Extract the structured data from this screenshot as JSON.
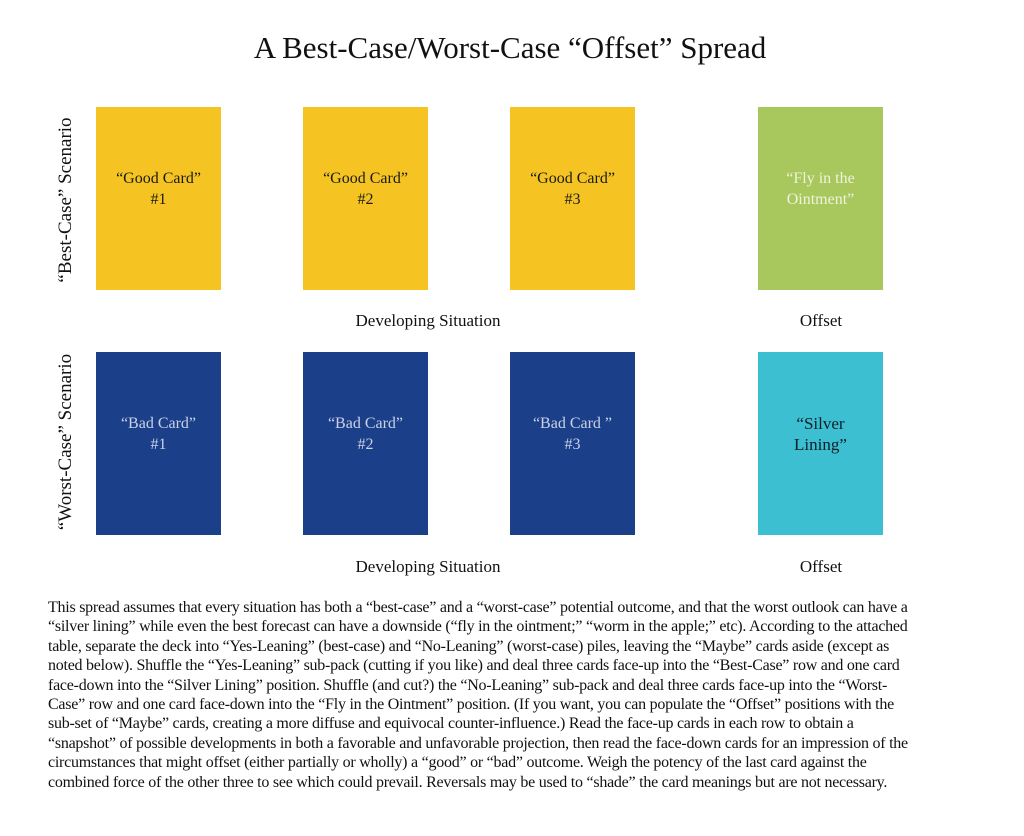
{
  "title": "A Best-Case/Worst-Case “Offset” Spread",
  "rows": [
    {
      "label": "“Best-Case” Scenario",
      "cards": [
        {
          "line1": "“Good Card”",
          "line2": "#1",
          "color": "#f6c422"
        },
        {
          "line1": "“Good Card”",
          "line2": "#2",
          "color": "#f6c422"
        },
        {
          "line1": "“Good Card”",
          "line2": "#3",
          "color": "#f6c422"
        },
        {
          "line1": "“Fly in the",
          "line2": "Ointment”",
          "color": "#a8c75c"
        }
      ],
      "caption_main": "Developing Situation",
      "caption_offset": "Offset"
    },
    {
      "label": "“Worst-Case” Scenario",
      "cards": [
        {
          "line1": "“Bad Card”",
          "line2": "#1",
          "color": "#1c3f89"
        },
        {
          "line1": "“Bad Card”",
          "line2": "#2",
          "color": "#1c3f89"
        },
        {
          "line1": "“Bad Card ”",
          "line2": "#3",
          "color": "#1c3f89"
        },
        {
          "line1": "“Silver",
          "line2": "Lining”",
          "color": "#3cbfd1"
        }
      ],
      "caption_main": "Developing Situation",
      "caption_offset": "Offset"
    }
  ],
  "description_lines": [
    "This spread assumes that every situation has both a “best-case” and a “worst-case” potential outcome, and that the worst outlook can have a",
    "“silver lining” while even the best forecast can have a downside (“fly in the ointment;” “worm in the apple;” etc). According to the attached",
    "table, separate the deck into “Yes-Leaning” (best-case) and “No-Leaning” (worst-case) piles, leaving the “Maybe” cards aside (except as",
    "noted below). Shuffle the “Yes-Leaning” sub-pack (cutting if you like) and deal three cards face-up into the “Best-Case” row and one card",
    "face-down into the “Silver Lining” position. Shuffle (and cut?) the “No-Leaning” sub-pack and deal three cards face-up into the “Worst-",
    "Case” row and one card face-down into the “Fly in the Ointment” position. (If you want, you can populate the “Offset” positions with the",
    "sub-set of “Maybe” cards, creating a more diffuse and equivocal counter-influence.) Read the face-up cards in each row to obtain a",
    "“snapshot” of possible developments in both a favorable and unfavorable  projection, then read the face-down cards for an impression of the",
    "circumstances that might offset (either partially or wholly) a “good” or “bad” outcome. Weigh the potency of the last card  against the",
    "combined force of the other three to see which could prevail. Reversals may be used to “shade” the card meanings but are not necessary."
  ]
}
